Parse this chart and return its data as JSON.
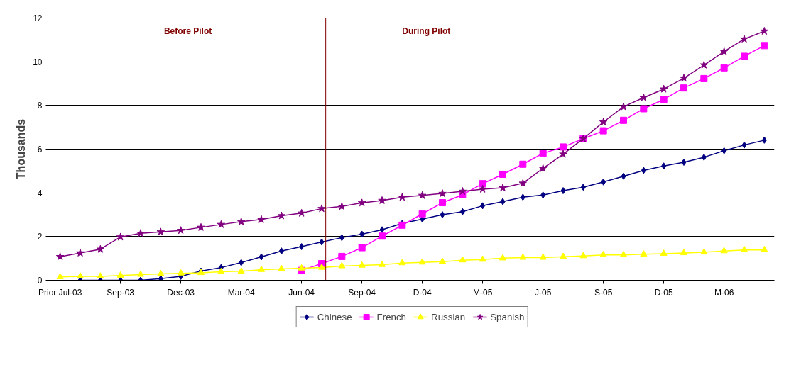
{
  "chart_data": {
    "type": "line",
    "ylabel": "Thousands",
    "categories": [
      "Prior Jul-03",
      null,
      null,
      "Sep-03",
      null,
      null,
      "Dec-03",
      null,
      null,
      "Mar-04",
      null,
      null,
      "Jun-04",
      null,
      null,
      "Sep-04",
      null,
      null,
      "D-04",
      null,
      null,
      "M-05",
      null,
      null,
      "J-05",
      null,
      null,
      "S-05",
      null,
      null,
      "D-05",
      null,
      null,
      "M-06",
      null,
      null
    ],
    "series": [
      {
        "name": "Chinese",
        "color": "#000080",
        "marker": "diamond",
        "values": [
          null,
          0,
          0,
          0,
          0,
          0.07,
          0.18,
          0.42,
          0.58,
          0.81,
          1.07,
          1.34,
          1.54,
          1.75,
          1.95,
          2.11,
          2.31,
          2.6,
          2.8,
          3.0,
          3.14,
          3.41,
          3.6,
          3.8,
          3.9,
          4.1,
          4.26,
          4.5,
          4.76,
          5.03,
          5.23,
          5.4,
          5.63,
          5.93,
          6.19,
          6.41
        ]
      },
      {
        "name": "French",
        "color": "#ff00ff",
        "marker": "square",
        "values": [
          null,
          null,
          null,
          null,
          null,
          null,
          null,
          null,
          null,
          null,
          null,
          null,
          0.45,
          0.76,
          1.09,
          1.49,
          2.02,
          2.52,
          3.04,
          3.55,
          3.91,
          4.42,
          4.85,
          5.31,
          5.81,
          6.1,
          6.48,
          6.84,
          7.32,
          7.85,
          8.28,
          8.8,
          9.23,
          9.72,
          10.25,
          10.74
        ]
      },
      {
        "name": "Russian",
        "color": "#ffff00",
        "marker": "triangle",
        "values": [
          0.15,
          0.18,
          0.18,
          0.22,
          0.26,
          0.29,
          0.32,
          0.34,
          0.39,
          0.41,
          0.48,
          0.52,
          0.55,
          0.58,
          0.65,
          0.68,
          0.71,
          0.79,
          0.82,
          0.85,
          0.92,
          0.95,
          1.01,
          1.04,
          1.04,
          1.08,
          1.11,
          1.16,
          1.16,
          1.19,
          1.22,
          1.25,
          1.28,
          1.34,
          1.39,
          1.39
        ]
      },
      {
        "name": "Spanish",
        "color": "#800080",
        "marker": "star",
        "values": [
          1.08,
          1.25,
          1.42,
          1.98,
          2.15,
          2.21,
          2.28,
          2.42,
          2.55,
          2.68,
          2.78,
          2.95,
          3.07,
          3.28,
          3.38,
          3.54,
          3.65,
          3.8,
          3.88,
          3.97,
          4.07,
          4.17,
          4.23,
          4.44,
          5.12,
          5.77,
          6.48,
          7.24,
          7.94,
          8.36,
          8.75,
          9.25,
          9.85,
          10.47,
          11.04,
          11.4
        ]
      }
    ],
    "ylim": [
      0,
      12
    ],
    "yticks": [
      0,
      2,
      4,
      6,
      8,
      10,
      12
    ],
    "grid": "y",
    "legend": "bottom",
    "annotations": [
      "Before Pilot",
      "During Pilot"
    ]
  }
}
